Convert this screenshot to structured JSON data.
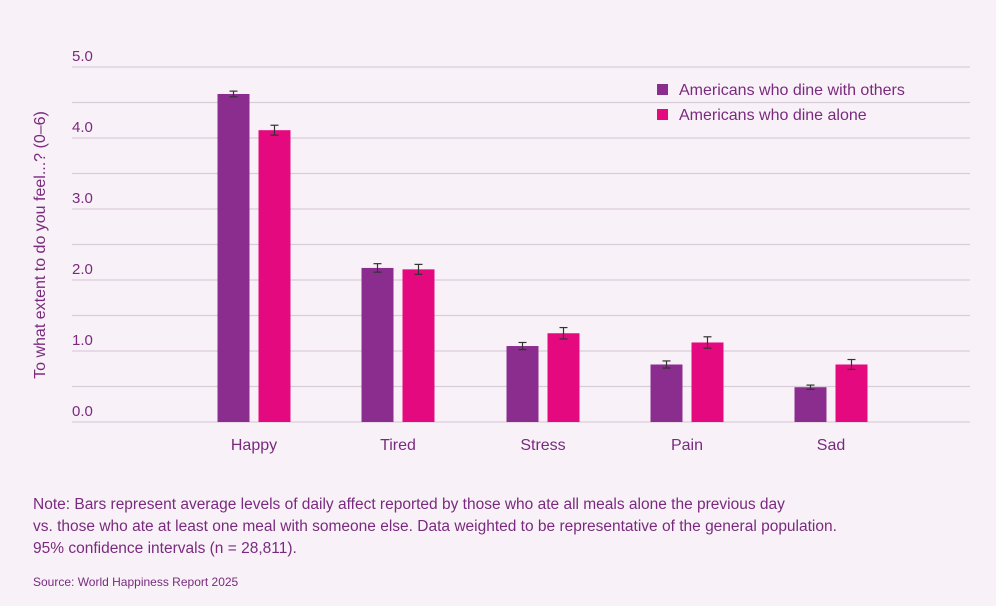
{
  "chart_data": {
    "type": "bar",
    "ylabel": "To what extent to do you feel...? (0–6)",
    "ylim": [
      0,
      5
    ],
    "yticks": [
      "0.0",
      "1.0",
      "2.0",
      "3.0",
      "4.0",
      "5.0"
    ],
    "grid": true,
    "legend_position": "top-right",
    "categories": [
      "Happy",
      "Tired",
      "Stress",
      "Pain",
      "Sad"
    ],
    "series": [
      {
        "name": "Americans who dine with others",
        "color": "#8b2d8e",
        "values": [
          4.62,
          2.17,
          1.07,
          0.81,
          0.49
        ],
        "ci": [
          0.04,
          0.06,
          0.05,
          0.05,
          0.03
        ]
      },
      {
        "name": "Americans who dine alone",
        "color": "#e5097f",
        "values": [
          4.11,
          2.15,
          1.25,
          1.12,
          0.81
        ],
        "ci": [
          0.07,
          0.07,
          0.08,
          0.08,
          0.07
        ]
      }
    ]
  },
  "note": {
    "line1": "Note: Bars represent average levels of daily affect reported by those who ate all meals alone the previous day",
    "line2": "vs. those who ate at least one meal with someone else. Data weighted to be representative of the general population.",
    "line3": "95% confidence intervals (n = 28,811)."
  },
  "source": "Source: World Happiness Report 2025"
}
